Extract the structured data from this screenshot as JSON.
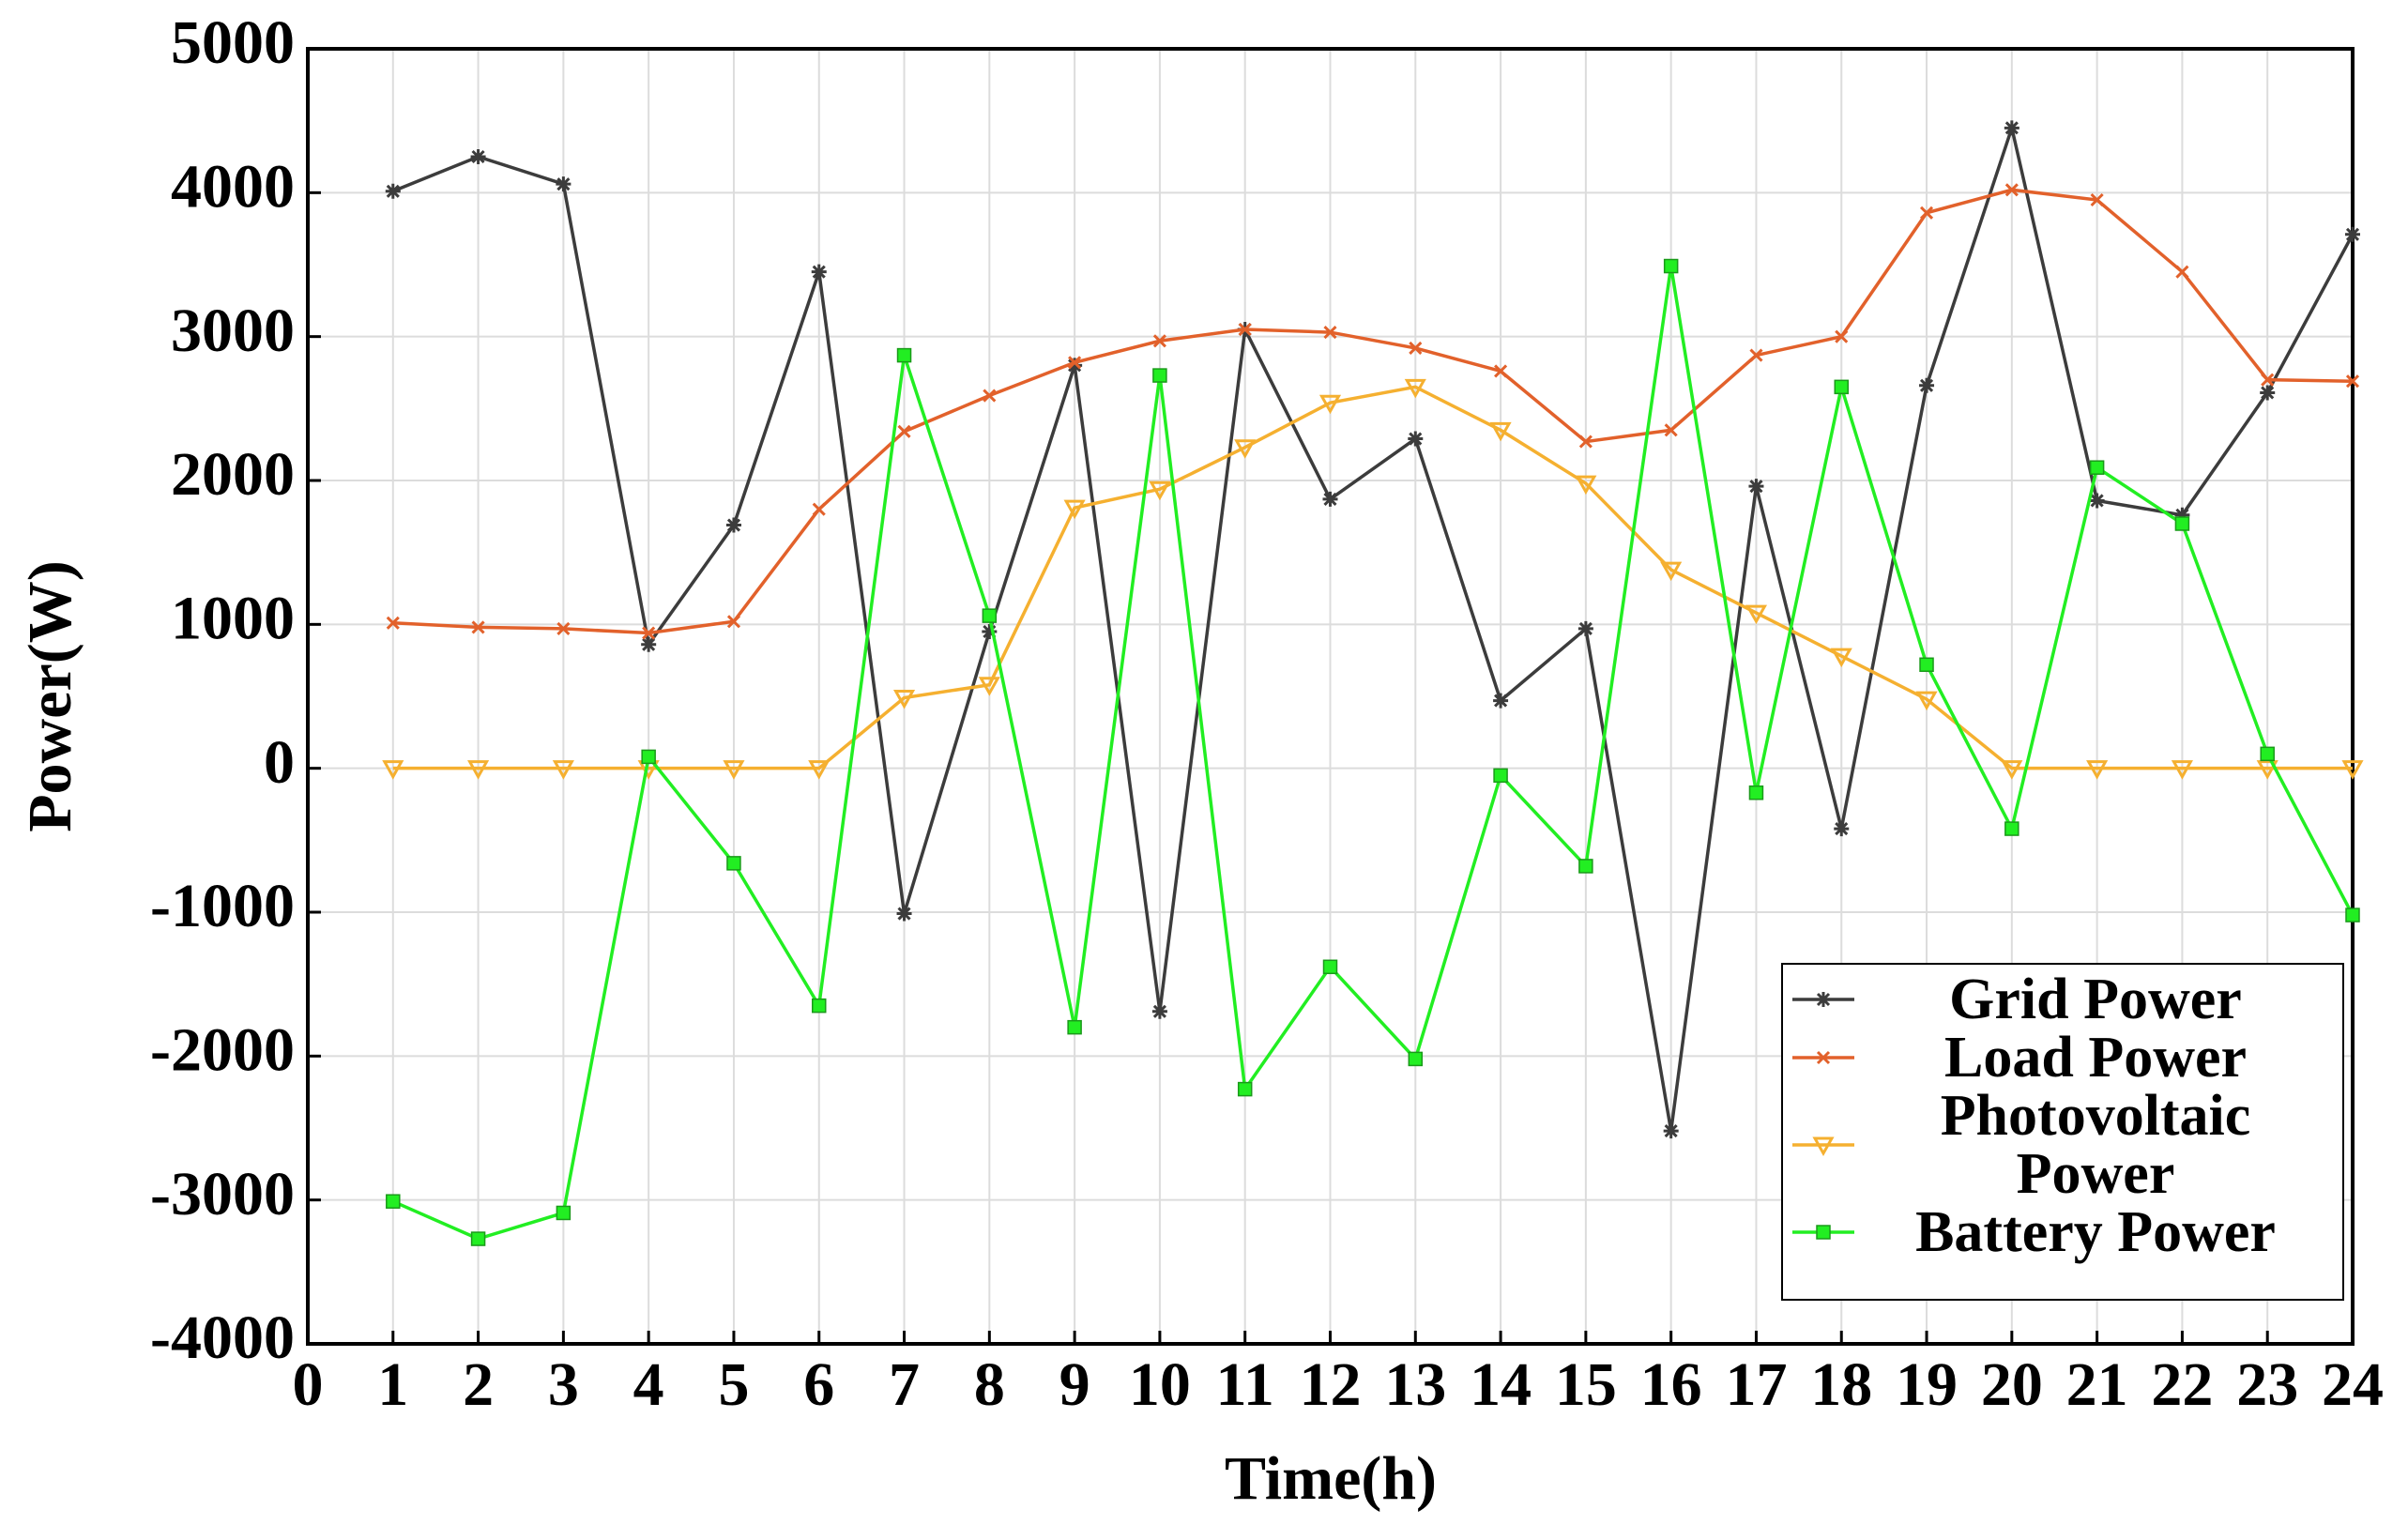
{
  "chart_data": {
    "type": "line",
    "x_label": "Time(h)",
    "y_label": "Power(W)",
    "x": [
      1,
      2,
      3,
      4,
      5,
      6,
      7,
      8,
      9,
      10,
      11,
      12,
      13,
      14,
      15,
      16,
      17,
      18,
      19,
      20,
      21,
      22,
      23,
      24
    ],
    "xlim": [
      0,
      24
    ],
    "xticks": [
      0,
      1,
      2,
      3,
      4,
      5,
      6,
      7,
      8,
      9,
      10,
      11,
      12,
      13,
      14,
      15,
      16,
      17,
      18,
      19,
      20,
      21,
      22,
      23,
      24
    ],
    "ylim": [
      -4000,
      5000
    ],
    "yticks": [
      -4000,
      -3000,
      -2000,
      -1000,
      0,
      1000,
      2000,
      3000,
      4000,
      5000
    ],
    "grid": true,
    "legend": "lower right",
    "series": [
      {
        "name": "Grid Power",
        "color": "#3c3c3c",
        "marker": "star",
        "values": [
          4010,
          4250,
          4060,
          860,
          1690,
          3450,
          -1010,
          950,
          2800,
          -1690,
          3050,
          1870,
          2290,
          470,
          970,
          -2520,
          1960,
          -420,
          2660,
          4450,
          1860,
          1760,
          2610,
          3710
        ]
      },
      {
        "name": "Load Power",
        "color": "#e2612b",
        "marker": "x",
        "values": [
          1010,
          980,
          970,
          940,
          1020,
          1800,
          2340,
          2590,
          2820,
          2970,
          3050,
          3030,
          2920,
          2760,
          2270,
          2350,
          2870,
          3000,
          3860,
          4020,
          3950,
          3450,
          2700,
          2690
        ]
      },
      {
        "name": "Photovoltaic Power",
        "color": "#f5b030",
        "marker": "triangle-down",
        "values": [
          0,
          0,
          0,
          0,
          0,
          0,
          490,
          580,
          1810,
          1940,
          2230,
          2540,
          2650,
          2350,
          1980,
          1380,
          1080,
          780,
          480,
          0,
          0,
          0,
          0,
          0
        ]
      },
      {
        "name": "Battery Power",
        "color": "#22ee22",
        "marker": "square",
        "values": [
          -3010,
          -3270,
          -3090,
          80,
          -660,
          -1650,
          2870,
          1060,
          -1800,
          2730,
          -2230,
          -1380,
          -2020,
          -50,
          -680,
          3490,
          -170,
          2650,
          720,
          -420,
          2090,
          1700,
          100,
          -1020
        ]
      }
    ]
  }
}
